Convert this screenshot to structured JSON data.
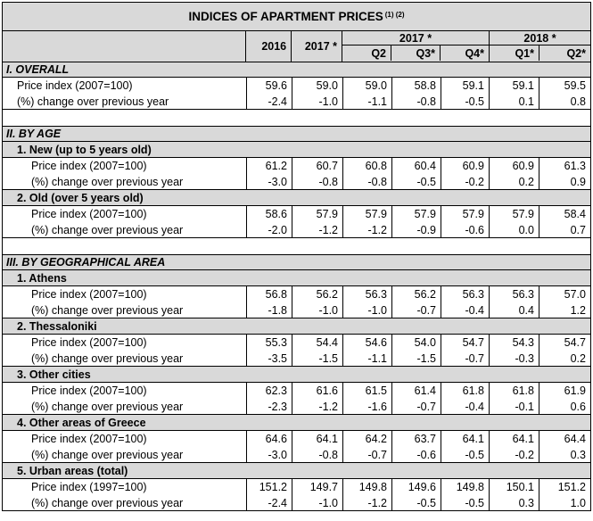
{
  "title": "INDICES OF APARTMENT PRICES",
  "title_notes": "(1) (2)",
  "header": {
    "col_2016": "2016",
    "col_2017": "2017 *",
    "group_2017": "2017 *",
    "group_2018": "2018 *",
    "q2_2017": "Q2",
    "q3_2017": "Q3*",
    "q4_2017": "Q4*",
    "q1_2018": "Q1*",
    "q2_2018": "Q2*"
  },
  "sections": [
    {
      "title": "I. OVERALL",
      "groups": [
        {
          "name": "",
          "rows": [
            {
              "label": "Price index (2007=100)",
              "values": [
                "59.6",
                "59.0",
                "59.0",
                "58.8",
                "59.1",
                "59.1",
                "59.5"
              ]
            },
            {
              "label": "(%) change over previous year",
              "values": [
                "-2.4",
                "-1.0",
                "-1.1",
                "-0.8",
                "-0.5",
                "0.1",
                "0.8"
              ]
            }
          ]
        }
      ]
    },
    {
      "title": "II. BY AGE",
      "groups": [
        {
          "name": "1.  New (up to 5 years old)",
          "rows": [
            {
              "label": "Price index (2007=100)",
              "values": [
                "61.2",
                "60.7",
                "60.8",
                "60.4",
                "60.9",
                "60.9",
                "61.3"
              ]
            },
            {
              "label": "(%) change over previous year",
              "values": [
                "-3.0",
                "-0.8",
                "-0.8",
                "-0.5",
                "-0.2",
                "0.2",
                "0.9"
              ]
            }
          ]
        },
        {
          "name": "2.  Old (over 5 years old)",
          "rows": [
            {
              "label": "Price index (2007=100)",
              "values": [
                "58.6",
                "57.9",
                "57.9",
                "57.9",
                "57.9",
                "57.9",
                "58.4"
              ]
            },
            {
              "label": "(%) change over previous year",
              "values": [
                "-2.0",
                "-1.2",
                "-1.2",
                "-0.9",
                "-0.6",
                "0.0",
                "0.7"
              ]
            }
          ]
        }
      ]
    },
    {
      "title": "III. BY GEOGRAPHICAL AREA",
      "groups": [
        {
          "name": "1.  Athens",
          "rows": [
            {
              "label": "Price index (2007=100)",
              "values": [
                "56.8",
                "56.2",
                "56.3",
                "56.2",
                "56.3",
                "56.3",
                "57.0"
              ]
            },
            {
              "label": "(%) change over previous year",
              "values": [
                "-1.8",
                "-1.0",
                "-1.0",
                "-0.7",
                "-0.4",
                "0.4",
                "1.2"
              ]
            }
          ]
        },
        {
          "name": "2.  Thessaloniki",
          "rows": [
            {
              "label": "Price index (2007=100)",
              "values": [
                "55.3",
                "54.4",
                "54.6",
                "54.0",
                "54.7",
                "54.3",
                "54.7"
              ]
            },
            {
              "label": "(%) change over previous year",
              "values": [
                "-3.5",
                "-1.5",
                "-1.1",
                "-1.5",
                "-0.7",
                "-0.3",
                "0.2"
              ]
            }
          ]
        },
        {
          "name": "3.  Other cities",
          "rows": [
            {
              "label": "Price index (2007=100)",
              "values": [
                "62.3",
                "61.6",
                "61.5",
                "61.4",
                "61.8",
                "61.8",
                "61.9"
              ]
            },
            {
              "label": "(%) change over previous year",
              "values": [
                "-2.3",
                "-1.2",
                "-1.6",
                "-0.7",
                "-0.4",
                "-0.1",
                "0.6"
              ]
            }
          ]
        },
        {
          "name": "4.  Other areas of Greece",
          "rows": [
            {
              "label": "Price index (2007=100)",
              "values": [
                "64.6",
                "64.1",
                "64.2",
                "63.7",
                "64.1",
                "64.1",
                "64.4"
              ]
            },
            {
              "label": "(%) change over previous year",
              "values": [
                "-3.0",
                "-0.8",
                "-0.7",
                "-0.6",
                "-0.5",
                "-0.2",
                "0.3"
              ]
            }
          ]
        },
        {
          "name": "5.  Urban areas (total)",
          "rows": [
            {
              "label": "Price index (1997=100)",
              "values": [
                "151.2",
                "149.7",
                "149.8",
                "149.6",
                "149.8",
                "150.1",
                "151.2"
              ]
            },
            {
              "label": "(%) change over previous year",
              "values": [
                "-2.4",
                "-1.0",
                "-1.2",
                "-0.5",
                "-0.5",
                "0.3",
                "1.0"
              ]
            }
          ]
        }
      ]
    }
  ],
  "colors": {
    "header_gray": "#d9d9d9",
    "border": "#000000"
  }
}
